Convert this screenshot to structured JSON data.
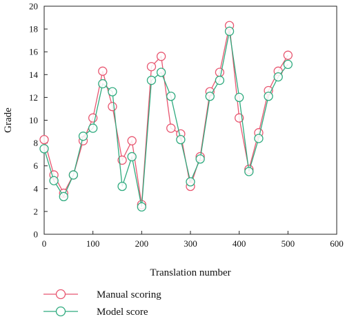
{
  "chart_data": {
    "type": "line",
    "title": "",
    "xlabel": "Translation number",
    "ylabel": "Grade",
    "xlim": [
      0,
      600
    ],
    "ylim": [
      0,
      20
    ],
    "xticks": [
      0,
      100,
      200,
      300,
      400,
      500,
      600
    ],
    "yticks": [
      0,
      2,
      4,
      6,
      8,
      10,
      12,
      14,
      16,
      18,
      20
    ],
    "grid": false,
    "legend_position": "bottom-left",
    "x": [
      0,
      20,
      40,
      60,
      80,
      100,
      120,
      140,
      160,
      180,
      200,
      220,
      240,
      260,
      280,
      300,
      320,
      340,
      360,
      380,
      400,
      420,
      440,
      460,
      480,
      500
    ],
    "series": [
      {
        "name": "Manual scoring",
        "color": "#e8556f",
        "marker": "open-circle",
        "values": [
          8.3,
          5.2,
          3.6,
          5.2,
          8.2,
          10.2,
          14.3,
          11.2,
          6.5,
          8.2,
          2.6,
          14.7,
          15.6,
          9.3,
          8.8,
          4.2,
          6.8,
          12.5,
          14.2,
          18.3,
          10.2,
          5.7,
          8.9,
          12.6,
          14.3,
          15.7
        ]
      },
      {
        "name": "Model score",
        "color": "#2eaa7e",
        "marker": "open-circle",
        "values": [
          7.5,
          4.7,
          3.3,
          5.2,
          8.6,
          9.3,
          13.2,
          12.5,
          4.2,
          6.8,
          2.4,
          13.5,
          14.2,
          12.1,
          8.3,
          4.6,
          6.6,
          12.1,
          13.5,
          17.8,
          12.0,
          5.5,
          8.4,
          12.1,
          13.8,
          14.9
        ]
      }
    ]
  }
}
